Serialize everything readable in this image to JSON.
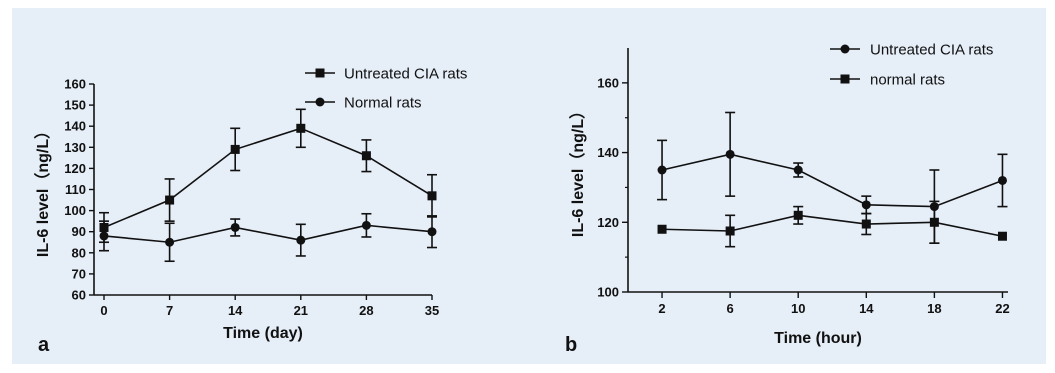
{
  "chart_data": [
    {
      "type": "line",
      "panel_label": "a",
      "xlabel": "Time (day)",
      "ylabel": "IL-6 level（ng/L）",
      "x": [
        0,
        7,
        14,
        21,
        28,
        35
      ],
      "xlim": [
        0,
        35
      ],
      "ylim": [
        60,
        160
      ],
      "yticks": [
        60,
        70,
        80,
        90,
        100,
        110,
        120,
        130,
        140,
        150,
        160
      ],
      "legend_position": "top-right",
      "series": [
        {
          "name": "Untreated CIA rats",
          "marker": "square",
          "values": [
            92,
            105,
            129,
            139,
            126,
            107
          ],
          "errors": [
            7,
            10,
            10,
            9,
            7.5,
            10
          ]
        },
        {
          "name": "Normal rats",
          "marker": "circle",
          "values": [
            88,
            85,
            92,
            86,
            93,
            90
          ],
          "errors": [
            7,
            9,
            4,
            7.5,
            5.5,
            7.5
          ]
        }
      ]
    },
    {
      "type": "line",
      "panel_label": "b",
      "xlabel": "Time (hour)",
      "ylabel": "IL-6 level（ng/L）",
      "x": [
        2,
        6,
        10,
        14,
        18,
        22
      ],
      "xlim": [
        0,
        24
      ],
      "ylim": [
        100,
        170
      ],
      "yticks": [
        100,
        120,
        140,
        160
      ],
      "legend_position": "top-right",
      "series": [
        {
          "name": "Untreated CIA rats",
          "marker": "circle",
          "values": [
            135,
            139.5,
            135,
            125,
            124.5,
            132
          ],
          "errors": [
            8.5,
            12,
            2,
            2.5,
            10.5,
            7.5
          ]
        },
        {
          "name": "normal rats",
          "marker": "square",
          "values": [
            118,
            117.5,
            122,
            119.5,
            120,
            116
          ],
          "errors": [
            0,
            4.5,
            2.5,
            3,
            6,
            0
          ]
        }
      ]
    }
  ]
}
